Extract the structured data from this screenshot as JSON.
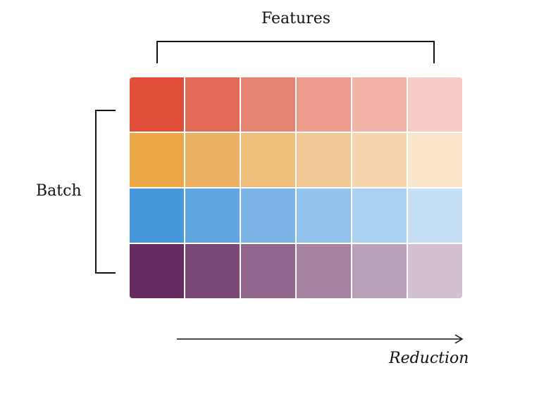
{
  "labels": {
    "features": "Features",
    "batch": "Batch",
    "reduction": "Reduction"
  },
  "grid": {
    "rows": [
      [
        "#de4e3b",
        "#e36a55",
        "#e78373",
        "#ec9b8d",
        "#f1b2a8",
        "#f6cbc6"
      ],
      [
        "#eba648",
        "#edb163",
        "#f0bf7c",
        "#f2c995",
        "#f5d6ad",
        "#f9e5ca"
      ],
      [
        "#4598dc",
        "#61a5e1",
        "#7ab5e6",
        "#92c3ec",
        "#abd1f1",
        "#c6e0f6"
      ],
      [
        "#662c61",
        "#7b4975",
        "#90658b",
        "#a583a1",
        "#bba0ba",
        "#d3c0d2"
      ]
    ]
  },
  "colors": {
    "line": "#111111",
    "background": "#ffffff"
  }
}
